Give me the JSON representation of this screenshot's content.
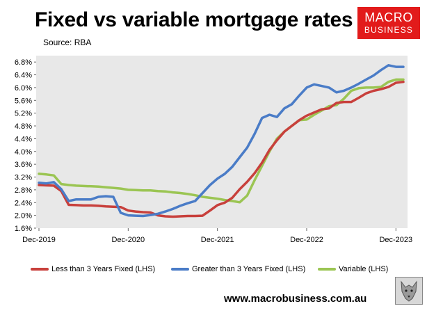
{
  "header": {
    "title": "Fixed vs variable mortgage rates",
    "source": "Source: RBA"
  },
  "logo": {
    "line1": "MACRO",
    "line2": "BUSINESS"
  },
  "footer": {
    "website": "www.macrobusiness.com.au"
  },
  "colors": {
    "plot_background": "#e8e8e8",
    "less_than_3y_fixed": "#c8403c",
    "greater_than_3y_fixed": "#4a7cc7",
    "variable": "#9bc553",
    "logo_red": "#e21b1b"
  },
  "icons": {
    "logo_image": "wolf-icon"
  },
  "chart_data": {
    "type": "line",
    "title": "Fixed vs variable mortgage rates",
    "xlabel": "",
    "ylabel": "",
    "ylim": [
      1.6,
      7.0
    ],
    "yticks": [
      "1.6%",
      "2.0%",
      "2.4%",
      "2.8%",
      "3.2%",
      "3.6%",
      "4.0%",
      "4.4%",
      "4.8%",
      "5.2%",
      "5.6%",
      "6.0%",
      "6.4%",
      "6.8%"
    ],
    "xticks": [
      "Dec-2019",
      "Dec-2020",
      "Dec-2021",
      "Dec-2022",
      "Dec-2023"
    ],
    "x": [
      "Dec-2019",
      "Jan-2020",
      "Feb-2020",
      "Mar-2020",
      "Apr-2020",
      "May-2020",
      "Jun-2020",
      "Jul-2020",
      "Aug-2020",
      "Sep-2020",
      "Oct-2020",
      "Nov-2020",
      "Dec-2020",
      "Jan-2021",
      "Feb-2021",
      "Mar-2021",
      "Apr-2021",
      "May-2021",
      "Jun-2021",
      "Jul-2021",
      "Aug-2021",
      "Sep-2021",
      "Oct-2021",
      "Nov-2021",
      "Dec-2021",
      "Jan-2022",
      "Feb-2022",
      "Mar-2022",
      "Apr-2022",
      "May-2022",
      "Jun-2022",
      "Jul-2022",
      "Aug-2022",
      "Sep-2022",
      "Oct-2022",
      "Nov-2022",
      "Dec-2022",
      "Jan-2023",
      "Feb-2023",
      "Mar-2023",
      "Apr-2023",
      "May-2023",
      "Jun-2023",
      "Jul-2023",
      "Aug-2023",
      "Sep-2023",
      "Oct-2023",
      "Nov-2023",
      "Dec-2023",
      "Jan-2024"
    ],
    "grid": false,
    "legend_position": "bottom",
    "series": [
      {
        "name": "Less than 3 Years Fixed (LHS)",
        "color": "#c8403c",
        "values": [
          2.95,
          2.94,
          2.93,
          2.76,
          2.33,
          2.32,
          2.31,
          2.31,
          2.3,
          2.28,
          2.27,
          2.26,
          2.15,
          2.12,
          2.1,
          2.09,
          2.0,
          1.97,
          1.96,
          1.97,
          1.98,
          1.98,
          1.99,
          2.15,
          2.32,
          2.4,
          2.55,
          2.82,
          3.05,
          3.32,
          3.65,
          4.05,
          4.35,
          4.62,
          4.8,
          4.98,
          5.12,
          5.22,
          5.32,
          5.35,
          5.52,
          5.55,
          5.55,
          5.68,
          5.82,
          5.9,
          5.95,
          6.02,
          6.15,
          6.18
        ]
      },
      {
        "name": "Greater than 3 Years Fixed (LHS)",
        "color": "#4a7cc7",
        "values": [
          3.02,
          3.0,
          3.04,
          2.82,
          2.45,
          2.5,
          2.5,
          2.5,
          2.58,
          2.6,
          2.58,
          2.08,
          2.0,
          1.99,
          1.98,
          2.01,
          2.05,
          2.12,
          2.2,
          2.3,
          2.38,
          2.45,
          2.7,
          2.95,
          3.15,
          3.3,
          3.52,
          3.82,
          4.12,
          4.55,
          5.05,
          5.15,
          5.08,
          5.35,
          5.48,
          5.75,
          6.0,
          6.1,
          6.05,
          6.0,
          5.85,
          5.9,
          6.0,
          6.12,
          6.25,
          6.38,
          6.55,
          6.7,
          6.65,
          6.65
        ]
      },
      {
        "name": "Variable (LHS)",
        "color": "#9bc553",
        "values": [
          3.3,
          3.28,
          3.25,
          2.98,
          2.95,
          2.93,
          2.92,
          2.91,
          2.9,
          2.88,
          2.86,
          2.84,
          2.8,
          2.79,
          2.78,
          2.78,
          2.76,
          2.75,
          2.72,
          2.7,
          2.67,
          2.63,
          2.58,
          2.55,
          2.52,
          2.48,
          2.45,
          2.41,
          2.62,
          3.1,
          3.55,
          4.0,
          4.4,
          4.62,
          4.8,
          4.98,
          5.0,
          5.15,
          5.28,
          5.42,
          5.45,
          5.65,
          5.9,
          5.98,
          6.0,
          6.0,
          6.02,
          6.18,
          6.25,
          6.25
        ]
      }
    ]
  }
}
